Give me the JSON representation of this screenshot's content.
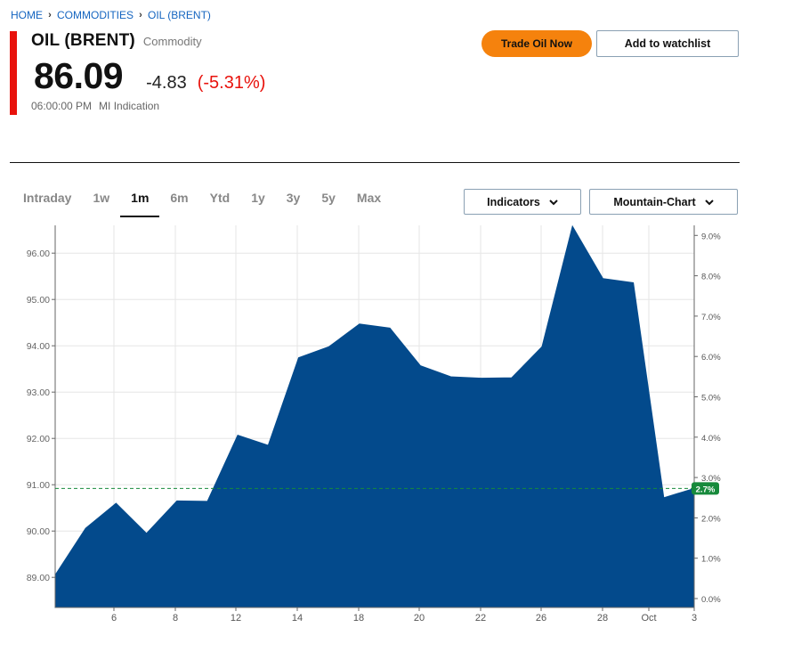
{
  "breadcrumb": {
    "items": [
      "HOME",
      "COMMODITIES",
      "OIL (BRENT)"
    ]
  },
  "header": {
    "title": "OIL (BRENT)",
    "subtitle": "Commodity",
    "price": "86.09",
    "change": "-4.83",
    "change_pct": "(-5.31%)",
    "time": "06:00:00 PM",
    "source": "MI Indication",
    "accent_color": "#e8120c"
  },
  "actions": {
    "trade_label": "Trade Oil Now",
    "watchlist_label": "Add to watchlist"
  },
  "tabs": {
    "items": [
      "Intraday",
      "1w",
      "1m",
      "6m",
      "Ytd",
      "1y",
      "3y",
      "5y",
      "Max"
    ],
    "active": "1m"
  },
  "controls": {
    "indicators_label": "Indicators",
    "chart_type_label": "Mountain-Chart",
    "chevron_icon": "chevron-down-icon"
  },
  "chart_data": {
    "type": "area",
    "fill_color": "#034a8c",
    "reference_color": "#178a3c",
    "x_ticks": [
      "6",
      "8",
      "12",
      "14",
      "18",
      "20",
      "22",
      "26",
      "28",
      "Oct",
      "3"
    ],
    "y_ticks_left": [
      "89.00",
      "90.00",
      "91.00",
      "92.00",
      "93.00",
      "94.00",
      "95.00",
      "96.00"
    ],
    "y_ticks_right": [
      "0.0%",
      "1.0%",
      "2.0%",
      "3.0%",
      "4.0%",
      "5.0%",
      "6.0%",
      "7.0%",
      "8.0%",
      "9.0%"
    ],
    "ylim": [
      88.35,
      96.6
    ],
    "reference_value": 90.92,
    "reference_label": "2.7%",
    "grid": true,
    "series": [
      {
        "values": [
          89.05,
          90.06,
          90.6,
          89.95,
          90.65,
          90.64,
          92.07,
          91.85,
          93.74,
          93.98,
          94.47,
          94.38,
          93.57,
          93.33,
          93.3,
          93.31,
          93.98,
          96.58,
          95.45,
          95.36,
          90.72,
          90.92
        ]
      }
    ]
  }
}
